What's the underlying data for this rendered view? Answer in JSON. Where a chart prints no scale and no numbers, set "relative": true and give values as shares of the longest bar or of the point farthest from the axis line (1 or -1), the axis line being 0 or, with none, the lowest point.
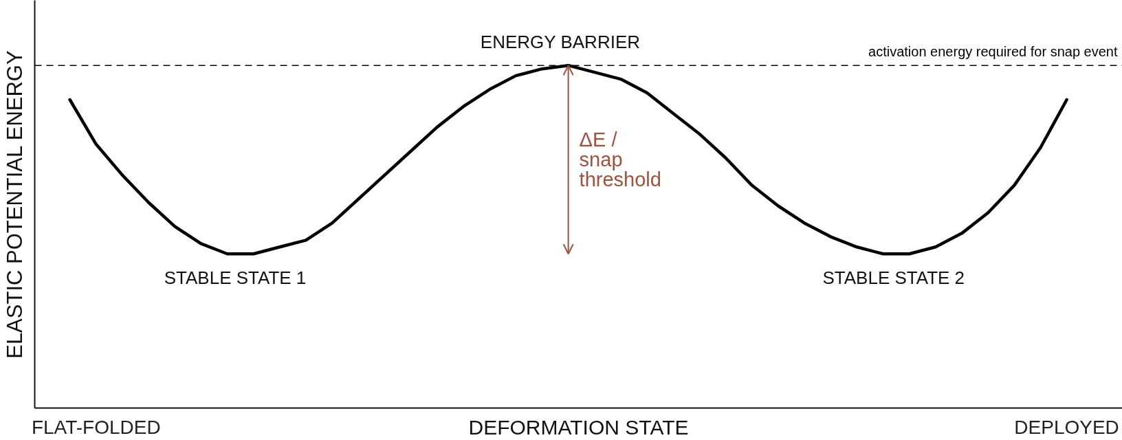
{
  "chart_data": {
    "type": "line",
    "xlabel": "DEFORMATION STATE",
    "ylabel": "ELASTIC POTENTIAL ENERGY",
    "relative": true,
    "tick_labels": "x",
    "grid": false,
    "categories": [
      null,
      "FLAT-FOLDED",
      null,
      null,
      null,
      null,
      null,
      null,
      null,
      null,
      null,
      null,
      null,
      null,
      null,
      null,
      null,
      null,
      null,
      null,
      null,
      null,
      null,
      null,
      null,
      null,
      null,
      null,
      null,
      null,
      null,
      null,
      null,
      null,
      null,
      null,
      null,
      null,
      "DEPLOYED"
    ],
    "series": [
      {
        "color": "#000000",
        "values": [
          0.9,
          0.77,
          0.68,
          0.6,
          0.53,
          0.48,
          0.45,
          0.45,
          0.47,
          0.49,
          0.54,
          0.61,
          0.68,
          0.75,
          0.82,
          0.88,
          0.93,
          0.97,
          0.99,
          1.0,
          0.98,
          0.96,
          0.92,
          0.86,
          0.8,
          0.73,
          0.65,
          0.59,
          0.54,
          0.5,
          0.47,
          0.45,
          0.45,
          0.47,
          0.51,
          0.57,
          0.65,
          0.76,
          0.9
        ]
      }
    ],
    "ref_lines": [
      {
        "axis": "y",
        "value": 1,
        "label": "activation energy required for snap event",
        "color": "#000000",
        "line_style": "dashed"
      }
    ],
    "annotations": [
      "ENERGY BARRIER",
      "STABLE STATE 1",
      "STABLE STATE 2",
      "ΔE /\nsnap\nthreshold"
    ]
  }
}
